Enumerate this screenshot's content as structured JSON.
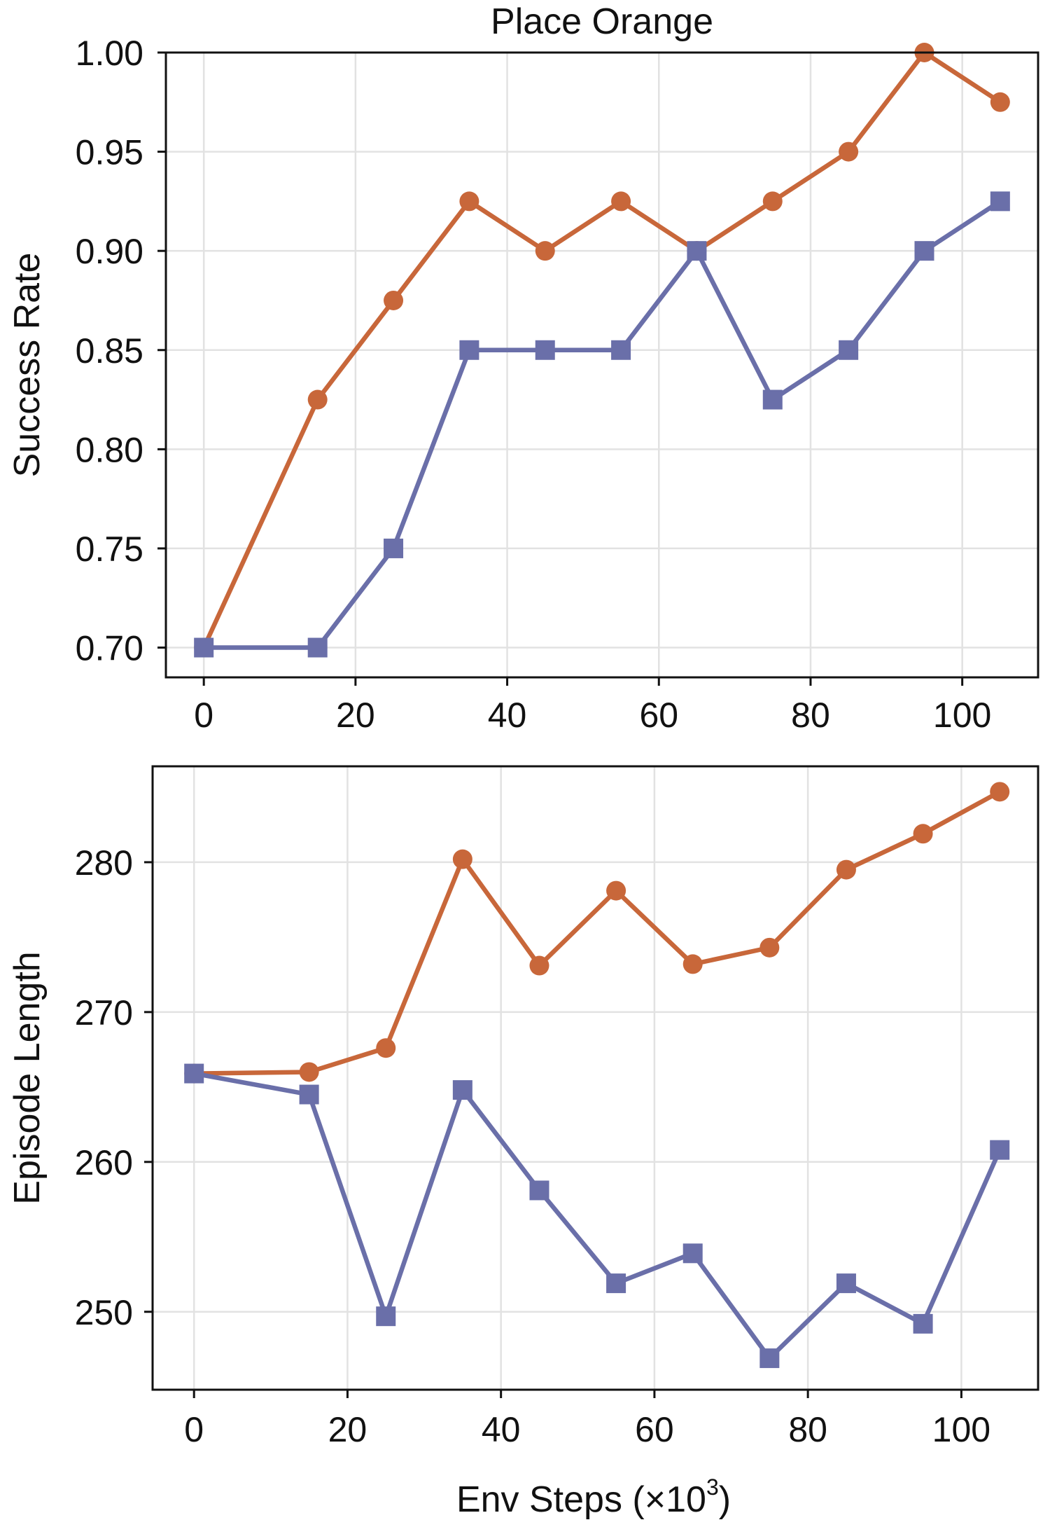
{
  "colors": {
    "orange_series": "#c8673a",
    "blue_series": "#6a6fa9",
    "grid": "#e2e2e2"
  },
  "xlabel_main": "Env Steps (×10",
  "xlabel_sup": "3",
  "xlabel_close": ")",
  "chart_data": [
    {
      "type": "line",
      "title": "Place Orange",
      "xlabel": "",
      "ylabel": "Success Rate",
      "x": [
        0,
        15,
        25,
        35,
        45,
        55,
        65,
        75,
        85,
        95,
        105
      ],
      "xlim": [
        -5,
        110
      ],
      "ylim": [
        0.685,
        1.0
      ],
      "xticks": [
        0,
        20,
        40,
        60,
        80,
        100
      ],
      "yticks": [
        0.7,
        0.75,
        0.8,
        0.85,
        0.9,
        0.95,
        1.0
      ],
      "xtick_labels": [
        "0",
        "20",
        "40",
        "60",
        "80",
        "100"
      ],
      "ytick_labels": [
        "0.70",
        "0.75",
        "0.80",
        "0.85",
        "0.90",
        "0.95",
        "1.00"
      ],
      "grid": true,
      "series": [
        {
          "color": "#c8673a",
          "marker": "circle",
          "values": [
            0.7,
            0.825,
            0.875,
            0.925,
            0.9,
            0.925,
            0.9,
            0.925,
            0.95,
            1.0,
            0.975
          ]
        },
        {
          "color": "#6a6fa9",
          "marker": "square",
          "values": [
            0.7,
            0.7,
            0.75,
            0.85,
            0.85,
            0.85,
            0.9,
            0.825,
            0.85,
            0.9,
            0.925
          ]
        }
      ]
    },
    {
      "type": "line",
      "title": "",
      "xlabel": "Env Steps (×10³)",
      "ylabel": "Episode Length",
      "x": [
        0,
        15,
        25,
        35,
        45,
        55,
        65,
        75,
        85,
        95,
        105
      ],
      "xlim": [
        -5.4,
        110
      ],
      "ylim": [
        244.8,
        286.4
      ],
      "xticks": [
        0,
        20,
        40,
        60,
        80,
        100
      ],
      "yticks": [
        250,
        260,
        270,
        280
      ],
      "xtick_labels": [
        "0",
        "20",
        "40",
        "60",
        "80",
        "100"
      ],
      "ytick_labels": [
        "250",
        "260",
        "270",
        "280"
      ],
      "grid": true,
      "series": [
        {
          "color": "#c8673a",
          "marker": "circle",
          "values": [
            265.9,
            266.0,
            267.6,
            280.2,
            273.1,
            278.1,
            273.2,
            274.3,
            279.5,
            281.9,
            284.7
          ]
        },
        {
          "color": "#6a6fa9",
          "marker": "square",
          "values": [
            265.9,
            264.5,
            249.7,
            264.8,
            258.1,
            251.9,
            253.9,
            246.9,
            251.9,
            249.2,
            260.8
          ]
        }
      ]
    }
  ]
}
